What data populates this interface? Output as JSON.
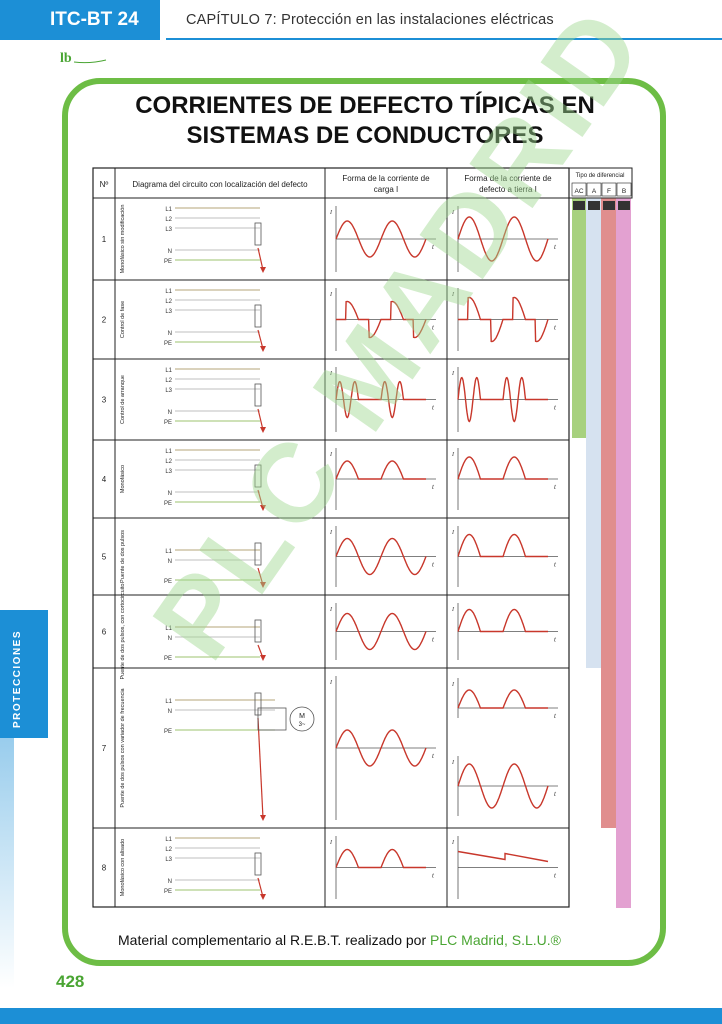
{
  "header": {
    "tag": "ITC-BT 24",
    "chapter_prefix": "CAPÍTULO 7:",
    "chapter_title": " Protección en las instalaciones eléctricas"
  },
  "title_line1": "CORRIENTES DE DEFECTO TÍPICAS EN",
  "title_line2": "SISTEMAS DE CONDUCTORES",
  "table": {
    "col_headers": {
      "num": "Nº",
      "diagram": "Diagrama del circuito con localización del defecto",
      "load_line1": "Forma de la corriente de",
      "load_line2": "carga I",
      "fault_line1": "Forma de la corriente de",
      "fault_line2": "defecto a tierra I",
      "types_title": "Tipo de diferencial",
      "types": [
        "AC",
        "A",
        "F",
        "B"
      ]
    },
    "rows": [
      {
        "num": "1",
        "label": "Monofásico sin modificación"
      },
      {
        "num": "2",
        "label": "Control de fase"
      },
      {
        "num": "3",
        "label": "Control de arranque"
      },
      {
        "num": "4",
        "label": "Monofásico"
      },
      {
        "num": "5",
        "label": "Puente de dos pulsos"
      },
      {
        "num": "6",
        "label": "Puente de dos pulsos, con cortocircuito"
      },
      {
        "num": "7",
        "label": "Puente de dos pulsos con variador de frecuencia"
      },
      {
        "num": "8",
        "label": "Monofásico con alisado"
      }
    ],
    "circuit_labels": {
      "L1": "L1",
      "L2": "L2",
      "L3": "L3",
      "N": "N",
      "PE": "PE",
      "motor": "M",
      "motor_sub": "3~"
    },
    "axis_t": "t",
    "type_colors": {
      "AC": "#a7d17e",
      "A": "#d6e2f0",
      "F": "#e08e8e",
      "B": "#e3a1d1"
    }
  },
  "watermark": "PLC MADRID",
  "side_tab": "PROTECCIONES",
  "footer_text": "Material complementario al R.E.B.T. realizado por ",
  "footer_brand": "PLC Madrid, S.L.U.®",
  "page_number": "428"
}
